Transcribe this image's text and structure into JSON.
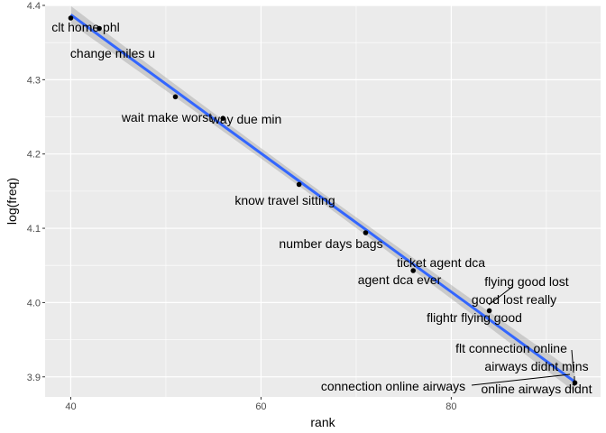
{
  "chart_data": {
    "type": "scatter",
    "xlabel": "rank",
    "ylabel": "log(freq)",
    "xlim": [
      37.3,
      95.7
    ],
    "ylim": [
      3.873,
      4.4
    ],
    "x_ticks": [
      40,
      60,
      80
    ],
    "y_ticks": [
      3.9,
      4.0,
      4.1,
      4.2,
      4.3,
      4.4
    ],
    "x_tick_labels": [
      "40",
      "60",
      "80"
    ],
    "y_tick_labels": [
      "3.9",
      "4.0",
      "4.1",
      "4.2",
      "4.3",
      "4.4"
    ],
    "grid": true,
    "points": [
      {
        "x": 40,
        "y": 4.383
      },
      {
        "x": 43,
        "y": 4.369
      },
      {
        "x": 51,
        "y": 4.277
      },
      {
        "x": 56,
        "y": 4.248
      },
      {
        "x": 64,
        "y": 4.159
      },
      {
        "x": 71,
        "y": 4.094
      },
      {
        "x": 76,
        "y": 4.043
      },
      {
        "x": 84,
        "y": 3.989
      },
      {
        "x": 93,
        "y": 3.892
      }
    ],
    "labels": [
      {
        "text": "clt home phl",
        "x": 40,
        "y": 4.383
      },
      {
        "text": "change miles u",
        "x": 43,
        "y": 4.369
      },
      {
        "text": "wait make worst",
        "x": 51,
        "y": 4.277
      },
      {
        "text": "way due min",
        "x": 56,
        "y": 4.248
      },
      {
        "text": "know travel sitting",
        "x": 64,
        "y": 4.159
      },
      {
        "text": "number days bags",
        "x": 71,
        "y": 4.094
      },
      {
        "text": "ticket agent dca",
        "x": 76,
        "y": 4.043
      },
      {
        "text": "agent dca ever",
        "x": 76,
        "y": 4.043
      },
      {
        "text": "flying good lost",
        "x": 84,
        "y": 3.989
      },
      {
        "text": "good lost really",
        "x": 84,
        "y": 3.989
      },
      {
        "text": "flightr flying good",
        "x": 84,
        "y": 3.989
      },
      {
        "text": "flt connection online",
        "x": 93,
        "y": 3.892
      },
      {
        "text": "airways didnt mins",
        "x": 93,
        "y": 3.892
      },
      {
        "text": "connection online airways",
        "x": 93,
        "y": 3.892
      },
      {
        "text": "online airways didnt",
        "x": 93,
        "y": 3.892
      }
    ],
    "smooth": {
      "method": "lm",
      "color": "#3366ff",
      "ribbon_color": "#999999"
    }
  }
}
